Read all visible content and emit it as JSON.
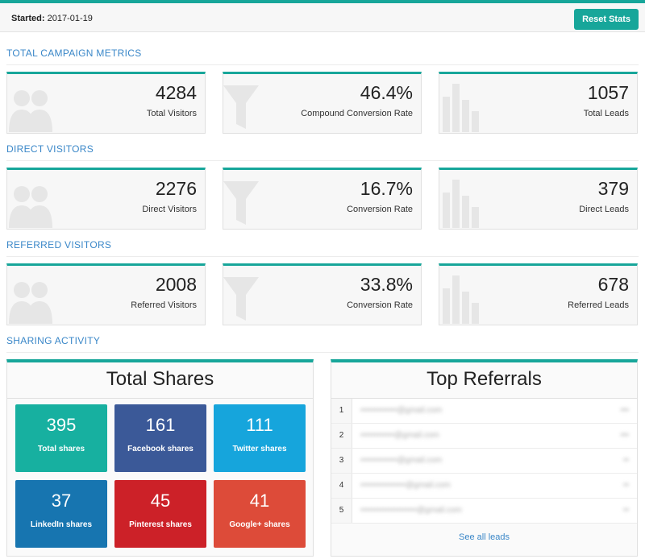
{
  "header": {
    "started_label": "Started:",
    "started_date": "2017-01-19",
    "reset_label": "Reset Stats"
  },
  "sections": {
    "total": {
      "title": "TOTAL CAMPAIGN METRICS",
      "cards": [
        {
          "value": "4284",
          "label": "Total Visitors",
          "icon": "users-icon"
        },
        {
          "value": "46.4%",
          "label": "Compound Conversion Rate",
          "icon": "funnel-icon"
        },
        {
          "value": "1057",
          "label": "Total Leads",
          "icon": "bar-chart-icon"
        }
      ]
    },
    "direct": {
      "title": "DIRECT VISITORS",
      "cards": [
        {
          "value": "2276",
          "label": "Direct Visitors",
          "icon": "users-icon"
        },
        {
          "value": "16.7%",
          "label": "Conversion Rate",
          "icon": "funnel-icon"
        },
        {
          "value": "379",
          "label": "Direct Leads",
          "icon": "bar-chart-icon"
        }
      ]
    },
    "referred": {
      "title": "REFERRED VISITORS",
      "cards": [
        {
          "value": "2008",
          "label": "Referred Visitors",
          "icon": "users-icon"
        },
        {
          "value": "33.8%",
          "label": "Conversion Rate",
          "icon": "funnel-icon"
        },
        {
          "value": "678",
          "label": "Referred Leads",
          "icon": "bar-chart-icon"
        }
      ]
    },
    "sharing": {
      "title": "SHARING ACTIVITY"
    }
  },
  "total_shares": {
    "title": "Total Shares",
    "tiles": [
      {
        "value": "395",
        "label": "Total shares",
        "color": "#17b0a0"
      },
      {
        "value": "161",
        "label": "Facebook shares",
        "color": "#3b5998"
      },
      {
        "value": "111",
        "label": "Twitter shares",
        "color": "#16a5dc"
      },
      {
        "value": "37",
        "label": "LinkedIn shares",
        "color": "#1775b0"
      },
      {
        "value": "45",
        "label": "Pinterest shares",
        "color": "#cc2128"
      },
      {
        "value": "41",
        "label": "Google+ shares",
        "color": "#dd4b39"
      }
    ]
  },
  "top_referrals": {
    "title": "Top Referrals",
    "rows": [
      {
        "rank": "1",
        "email": "•••••••••••••@gmail.com",
        "count": "•••"
      },
      {
        "rank": "2",
        "email": "••••••••••••@gmail.com",
        "count": "•••"
      },
      {
        "rank": "3",
        "email": "•••••••••••••@gmail.com",
        "count": "••"
      },
      {
        "rank": "4",
        "email": "••••••••••••••••@gmail.com",
        "count": "••"
      },
      {
        "rank": "5",
        "email": "••••••••••••••••••••@gmail.com",
        "count": "••"
      }
    ],
    "see_all_label": "See all leads"
  },
  "colors": {
    "accent": "#17a69a",
    "link": "#3a87c8"
  }
}
